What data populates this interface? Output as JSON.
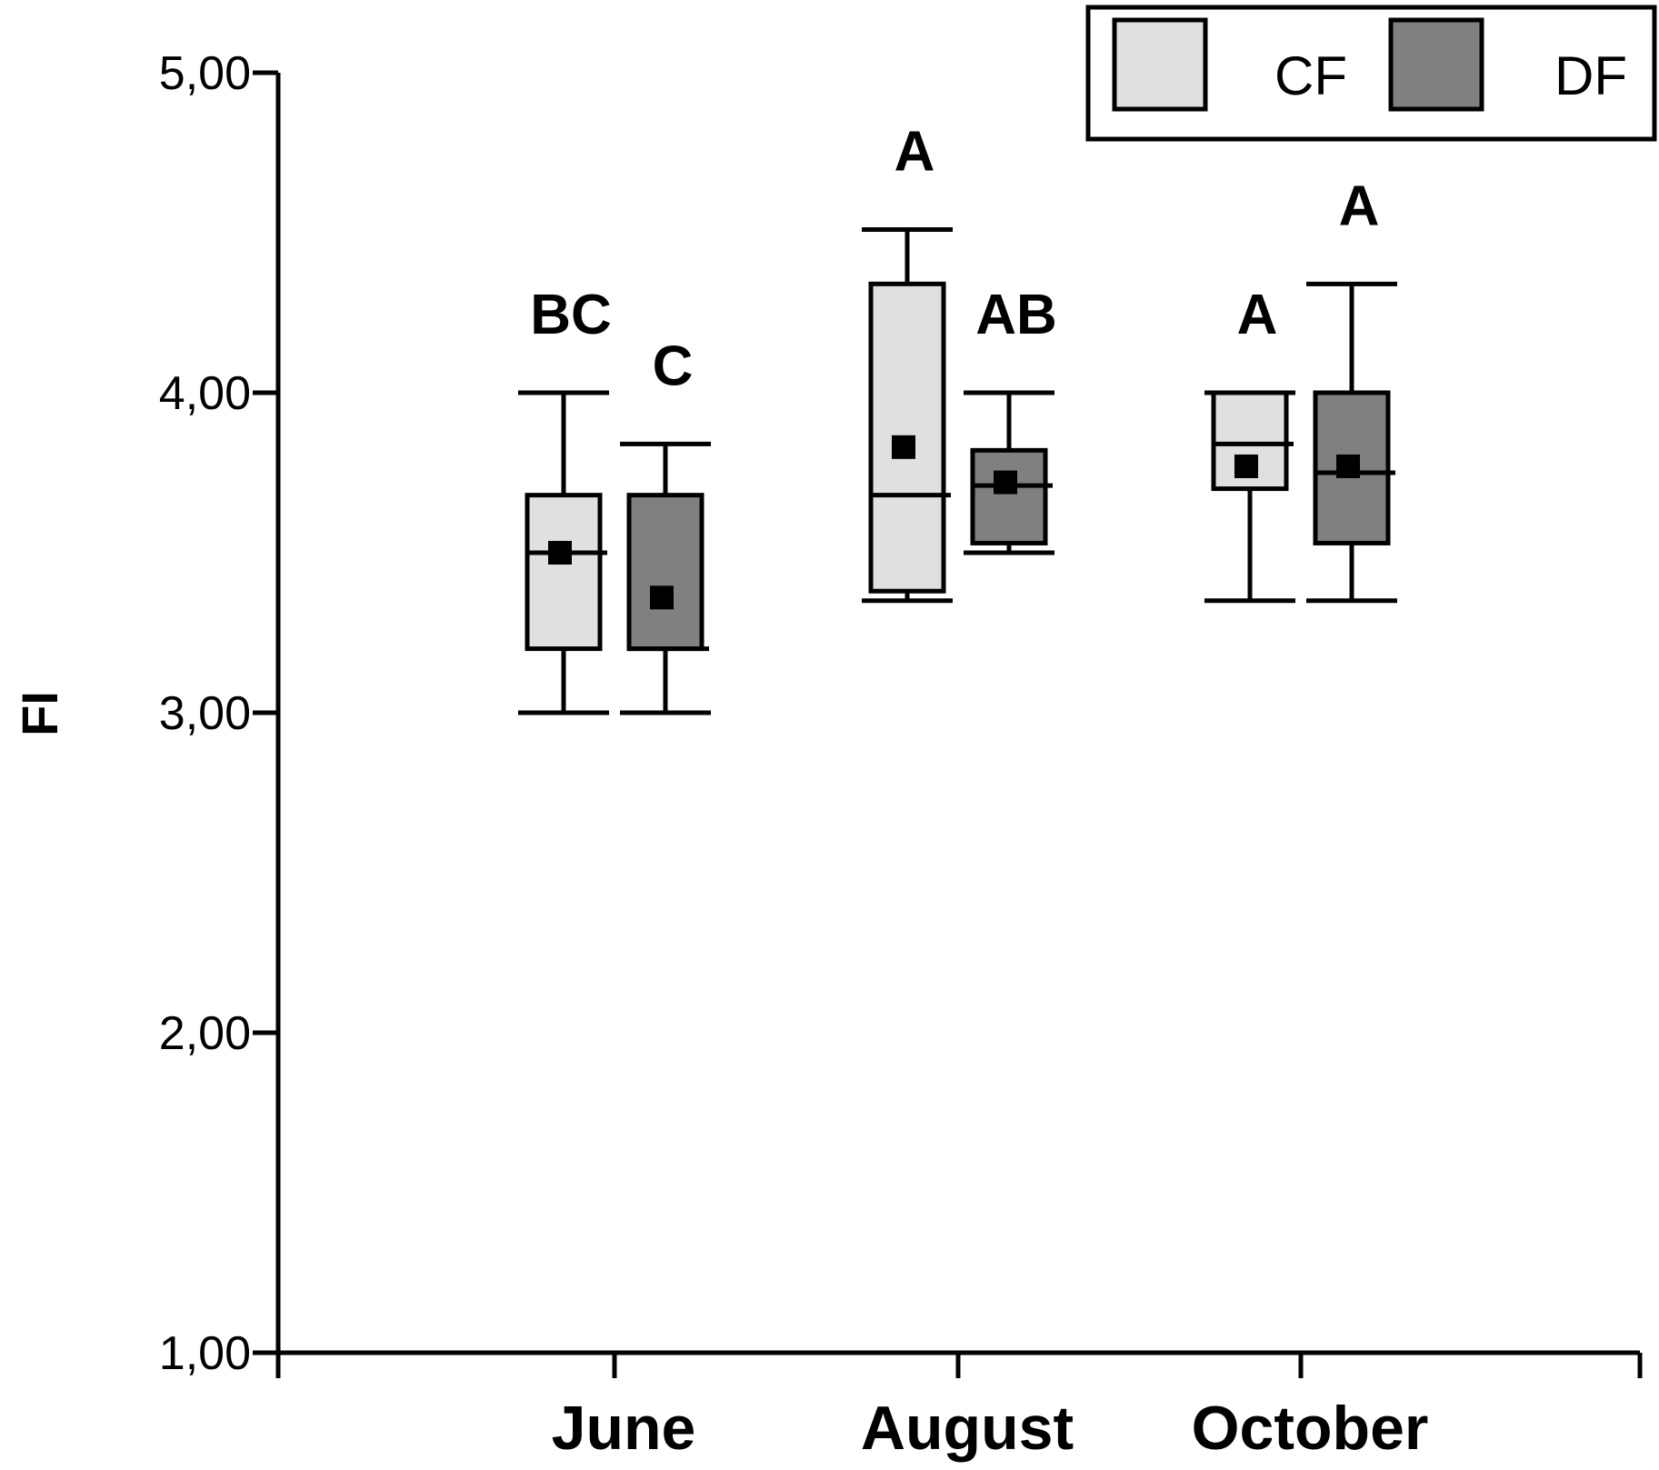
{
  "chart_data": {
    "type": "box",
    "ylabel": "FI",
    "xlabel": "",
    "ylim": [
      1,
      5
    ],
    "yticks": [
      "1,00",
      "2,00",
      "3,00",
      "4,00",
      "5,00"
    ],
    "categories": [
      "June",
      "August",
      "October"
    ],
    "legend": {
      "placement": "top-right"
    },
    "series": [
      {
        "name": "CF",
        "color": "#e0e0e0",
        "boxes": [
          {
            "category": "June",
            "min": 3.0,
            "q1": 3.2,
            "median": 3.5,
            "q3": 3.68,
            "max": 4.0,
            "mean": 3.5,
            "letter": "BC"
          },
          {
            "category": "August",
            "min": 3.35,
            "q1": 3.38,
            "median": 3.68,
            "q3": 4.34,
            "max": 4.51,
            "mean": 3.83,
            "letter": "A"
          },
          {
            "category": "October",
            "min": 3.35,
            "q1": 3.7,
            "median": 3.84,
            "q3": 4.0,
            "max": 4.0,
            "mean": 3.77,
            "letter": "A"
          }
        ]
      },
      {
        "name": "DF",
        "color": "#808080",
        "boxes": [
          {
            "category": "June",
            "min": 3.0,
            "q1": 3.2,
            "median": 3.2,
            "q3": 3.68,
            "max": 3.84,
            "mean": 3.36,
            "letter": "C"
          },
          {
            "category": "August",
            "min": 3.5,
            "q1": 3.53,
            "median": 3.71,
            "q3": 3.82,
            "max": 4.0,
            "mean": 3.72,
            "letter": "AB"
          },
          {
            "category": "October",
            "min": 3.35,
            "q1": 3.53,
            "median": 3.75,
            "q3": 4.0,
            "max": 4.34,
            "mean": 3.77,
            "letter": "A"
          }
        ]
      }
    ]
  }
}
